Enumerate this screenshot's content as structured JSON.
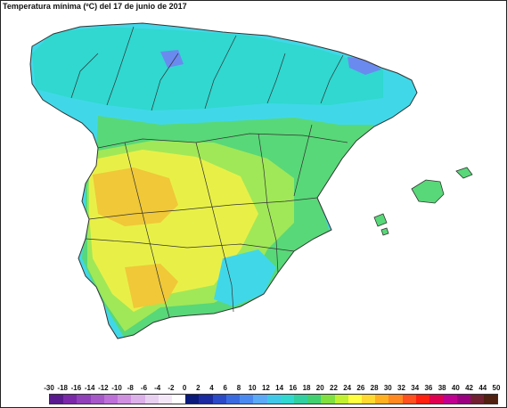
{
  "title": "Temperatura mínima (ºC) del 17 de junio de 2017",
  "legend": {
    "labels": [
      "-30",
      "-18",
      "-16",
      "-14",
      "-12",
      "-10",
      "-8",
      "-6",
      "-4",
      "-2",
      "0",
      "2",
      "4",
      "6",
      "8",
      "10",
      "12",
      "14",
      "16",
      "18",
      "20",
      "22",
      "24",
      "26",
      "28",
      "30",
      "32",
      "34",
      "36",
      "38",
      "40",
      "42",
      "44",
      "50"
    ],
    "colors": [
      "#5a1a8f",
      "#7a2aa8",
      "#9040b8",
      "#a658c8",
      "#bc70d8",
      "#d090e0",
      "#dcb0e8",
      "#e8d0f0",
      "#f4e8f8",
      "#ffffff",
      "#0a1a7a",
      "#1a2aa0",
      "#2a4ac8",
      "#3a6ae0",
      "#4a8af0",
      "#5aaaf8",
      "#40c8e8",
      "#30d8d0",
      "#30d0a0",
      "#40d070",
      "#80e040",
      "#c0f030",
      "#ffff40",
      "#ffd830",
      "#ffb020",
      "#ff8820",
      "#ff5020",
      "#ff2010",
      "#e00050",
      "#c00090",
      "#9a0080",
      "#702030",
      "#502010"
    ]
  },
  "map_colors": {
    "sea": "#ffffff",
    "north": "#30d8d0",
    "cyan": "#40d8e8",
    "green": "#58d878",
    "lime": "#a0e858",
    "yellow": "#e8f048",
    "orange": "#f0c838",
    "blue": "#6a8af0",
    "border": "#333333"
  }
}
